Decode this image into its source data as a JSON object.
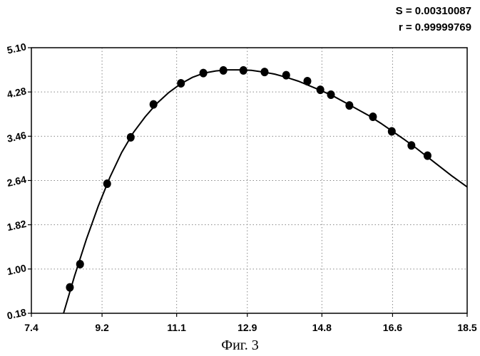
{
  "stats": {
    "s_line": "S = 0.00310087",
    "r_line": "r = 0.99999769"
  },
  "caption": "Фиг. 3",
  "chart_data": {
    "type": "scatter",
    "x_ticks": [
      "7.4",
      "9.2",
      "11.1",
      "12.9",
      "14.8",
      "16.6",
      "18.5"
    ],
    "y_ticks": [
      "0.18",
      "1.00",
      "1.82",
      "2.64",
      "3.46",
      "4.28",
      "5.10"
    ],
    "xlim": [
      7.4,
      18.5
    ],
    "ylim": [
      0.18,
      5.1
    ],
    "grid": true,
    "points": [
      {
        "x": 8.38,
        "y": 0.66
      },
      {
        "x": 8.64,
        "y": 1.09
      },
      {
        "x": 9.33,
        "y": 2.58
      },
      {
        "x": 9.93,
        "y": 3.44
      },
      {
        "x": 10.51,
        "y": 4.05
      },
      {
        "x": 11.21,
        "y": 4.44
      },
      {
        "x": 11.78,
        "y": 4.63
      },
      {
        "x": 12.29,
        "y": 4.68
      },
      {
        "x": 12.8,
        "y": 4.68
      },
      {
        "x": 13.34,
        "y": 4.65
      },
      {
        "x": 13.89,
        "y": 4.59
      },
      {
        "x": 14.43,
        "y": 4.48
      },
      {
        "x": 14.76,
        "y": 4.32
      },
      {
        "x": 15.03,
        "y": 4.23
      },
      {
        "x": 15.5,
        "y": 4.03
      },
      {
        "x": 16.1,
        "y": 3.82
      },
      {
        "x": 16.58,
        "y": 3.55
      },
      {
        "x": 17.08,
        "y": 3.29
      },
      {
        "x": 17.49,
        "y": 3.1
      }
    ],
    "curve": [
      {
        "x": 8.22,
        "y": 0.18
      },
      {
        "x": 8.5,
        "y": 0.87
      },
      {
        "x": 8.8,
        "y": 1.55
      },
      {
        "x": 9.1,
        "y": 2.16
      },
      {
        "x": 9.4,
        "y": 2.7
      },
      {
        "x": 9.7,
        "y": 3.16
      },
      {
        "x": 10.0,
        "y": 3.53
      },
      {
        "x": 10.3,
        "y": 3.82
      },
      {
        "x": 10.6,
        "y": 4.07
      },
      {
        "x": 10.9,
        "y": 4.27
      },
      {
        "x": 11.2,
        "y": 4.43
      },
      {
        "x": 11.5,
        "y": 4.55
      },
      {
        "x": 11.8,
        "y": 4.63
      },
      {
        "x": 12.1,
        "y": 4.67
      },
      {
        "x": 12.4,
        "y": 4.69
      },
      {
        "x": 12.7,
        "y": 4.69
      },
      {
        "x": 13.0,
        "y": 4.68
      },
      {
        "x": 13.3,
        "y": 4.65
      },
      {
        "x": 13.6,
        "y": 4.61
      },
      {
        "x": 13.9,
        "y": 4.55
      },
      {
        "x": 14.2,
        "y": 4.48
      },
      {
        "x": 14.5,
        "y": 4.39
      },
      {
        "x": 14.8,
        "y": 4.3
      },
      {
        "x": 15.1,
        "y": 4.2
      },
      {
        "x": 15.4,
        "y": 4.08
      },
      {
        "x": 15.7,
        "y": 3.96
      },
      {
        "x": 16.0,
        "y": 3.84
      },
      {
        "x": 16.3,
        "y": 3.7
      },
      {
        "x": 16.6,
        "y": 3.55
      },
      {
        "x": 16.9,
        "y": 3.4
      },
      {
        "x": 17.2,
        "y": 3.24
      },
      {
        "x": 17.5,
        "y": 3.07
      },
      {
        "x": 17.8,
        "y": 2.9
      },
      {
        "x": 18.1,
        "y": 2.73
      },
      {
        "x": 18.5,
        "y": 2.52
      }
    ]
  }
}
